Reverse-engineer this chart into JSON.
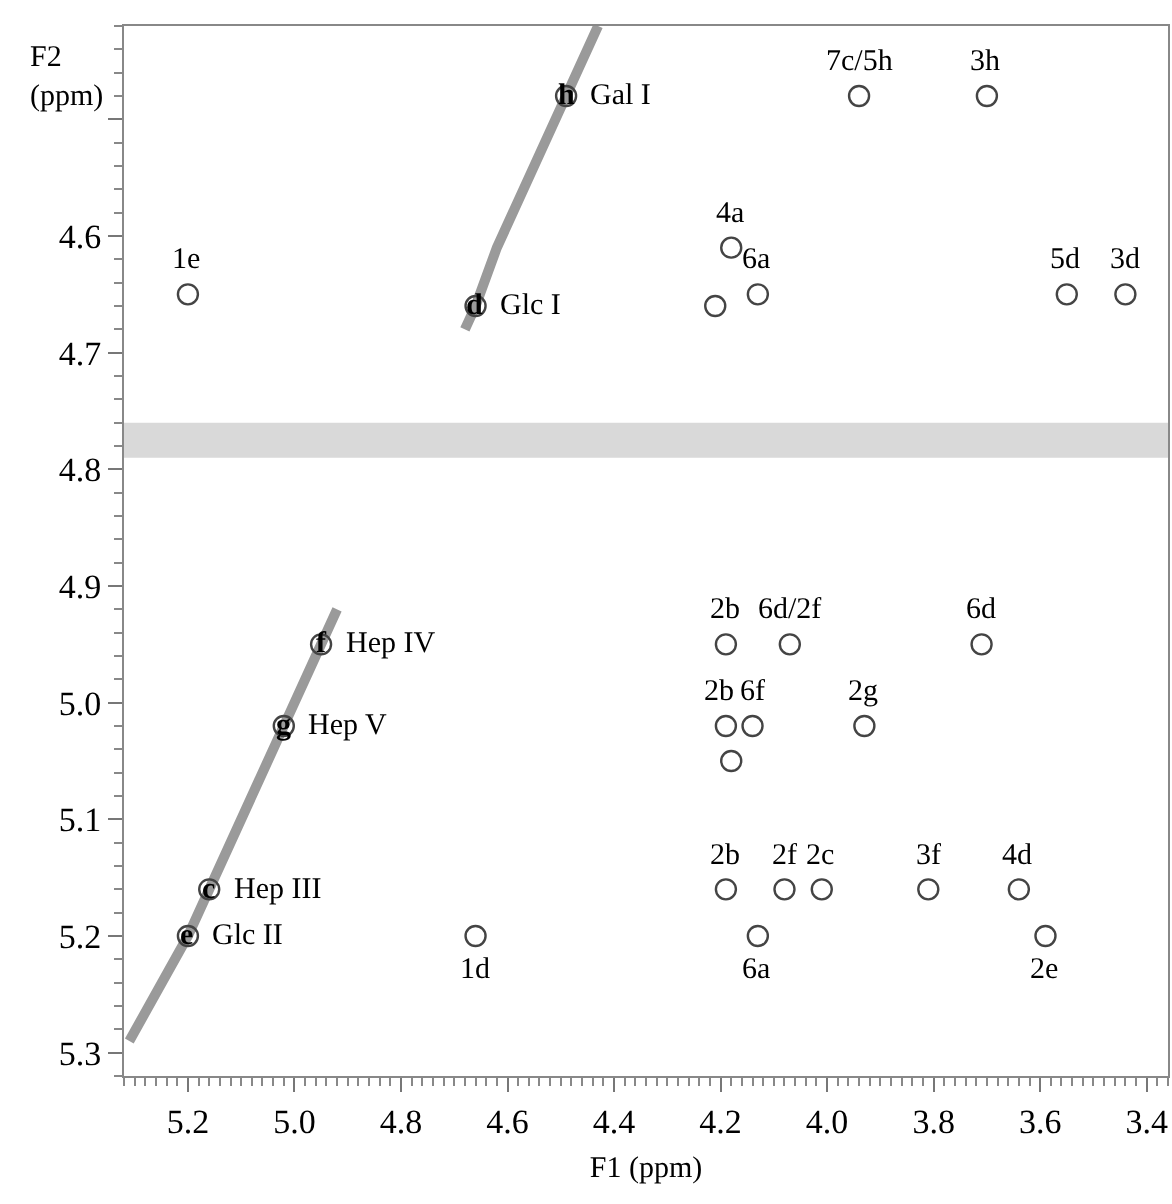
{
  "chart_data": {
    "type": "scatter",
    "xlabel": "F1 (ppm)",
    "ylabel": "F2\n(ppm)",
    "xlim": [
      5.32,
      3.36
    ],
    "ylim": [
      5.32,
      4.42
    ],
    "xticks": [
      5.2,
      {
        "value": 5.0,
        "label": "5.0"
      },
      4.8,
      4.6,
      4.4,
      4.2,
      {
        "value": 4.0,
        "label": "4.0"
      },
      3.8,
      3.6,
      3.4
    ],
    "yticks": [
      {
        "value": 4.5,
        "label": null
      },
      4.6,
      4.7,
      4.8,
      4.9,
      {
        "value": 5.0,
        "label": "5.0"
      },
      5.1,
      5.2,
      5.3
    ],
    "grid": false,
    "marker": "circle",
    "series": [
      {
        "type": "line",
        "marker": "none",
        "color": "#9a9a9a",
        "x": [
          5.31,
          5.2,
          5.16,
          5.02,
          4.95,
          4.92,
          4.8,
          4.68,
          4.66,
          4.62,
          4.49,
          4.43
        ],
        "values": [
          5.29,
          5.2,
          5.16,
          5.02,
          4.95,
          4.92,
          null,
          4.68,
          4.66,
          4.61,
          4.48,
          4.42
        ]
      },
      {
        "color": "#444444",
        "x": [
          4.49,
          4.66,
          4.95,
          5.02,
          5.16,
          5.2,
          3.94,
          3.7,
          4.18,
          4.21,
          4.13,
          3.55,
          3.44,
          5.2,
          4.66,
          4.19,
          4.07,
          3.71,
          4.19,
          4.14,
          3.93,
          4.18,
          4.19,
          4.08,
          4.01,
          3.81,
          3.64,
          4.13,
          3.59
        ],
        "values": [
          4.48,
          4.66,
          4.95,
          5.02,
          5.16,
          5.2,
          4.48,
          4.48,
          4.61,
          4.66,
          4.65,
          4.65,
          4.65,
          4.65,
          5.2,
          4.95,
          4.95,
          4.95,
          5.02,
          5.02,
          5.02,
          5.05,
          5.16,
          5.16,
          5.16,
          5.16,
          5.16,
          5.2,
          5.2
        ]
      }
    ],
    "bands": [
      {
        "axis": "y",
        "from": 4.76,
        "to": 4.79,
        "color": "#d9d9d9"
      }
    ],
    "annotations": [
      {
        "text": "h",
        "x": 4.49,
        "y": 4.48
      },
      {
        "text": "Gal I",
        "x": 4.49,
        "y": 4.48
      },
      {
        "text": "d",
        "x": 4.66,
        "y": 4.66
      },
      {
        "text": "Glc I",
        "x": 4.66,
        "y": 4.66
      },
      {
        "text": "1e",
        "x": 5.2,
        "y": 4.65
      },
      {
        "text": "7c/5h",
        "x": 3.94,
        "y": 4.48
      },
      {
        "text": "3h",
        "x": 3.7,
        "y": 4.48
      },
      {
        "text": "4a",
        "x": 4.18,
        "y": 4.61
      },
      {
        "text": "6a",
        "x": 4.13,
        "y": 4.65
      },
      {
        "text": "5d",
        "x": 3.55,
        "y": 4.65
      },
      {
        "text": "3d",
        "x": 3.44,
        "y": 4.65
      },
      {
        "text": "f",
        "x": 4.95,
        "y": 4.95
      },
      {
        "text": "Hep IV",
        "x": 4.95,
        "y": 4.95
      },
      {
        "text": "g",
        "x": 5.02,
        "y": 5.02
      },
      {
        "text": "Hep V",
        "x": 5.02,
        "y": 5.02
      },
      {
        "text": "c",
        "x": 5.16,
        "y": 5.16
      },
      {
        "text": "Hep III",
        "x": 5.16,
        "y": 5.16
      },
      {
        "text": "e",
        "x": 5.2,
        "y": 5.2
      },
      {
        "text": "Glc II",
        "x": 5.2,
        "y": 5.2
      },
      {
        "text": "1d",
        "x": 4.66,
        "y": 5.2
      },
      {
        "text": "2b",
        "x": 4.19,
        "y": 4.95
      },
      {
        "text": "6d/2f",
        "x": 4.07,
        "y": 4.95
      },
      {
        "text": "6d",
        "x": 3.71,
        "y": 4.95
      },
      {
        "text": "2b",
        "x": 4.19,
        "y": 5.02
      },
      {
        "text": "6f",
        "x": 4.14,
        "y": 5.02
      },
      {
        "text": "2g",
        "x": 3.93,
        "y": 5.02
      },
      {
        "text": "2b",
        "x": 4.19,
        "y": 5.16
      },
      {
        "text": "2f",
        "x": 4.08,
        "y": 5.16
      },
      {
        "text": "2c",
        "x": 4.01,
        "y": 5.16
      },
      {
        "text": "3f",
        "x": 3.81,
        "y": 5.16
      },
      {
        "text": "4d",
        "x": 3.64,
        "y": 5.16
      },
      {
        "text": "6a",
        "x": 4.13,
        "y": 5.2
      },
      {
        "text": "2e",
        "x": 3.59,
        "y": 5.2
      }
    ]
  }
}
